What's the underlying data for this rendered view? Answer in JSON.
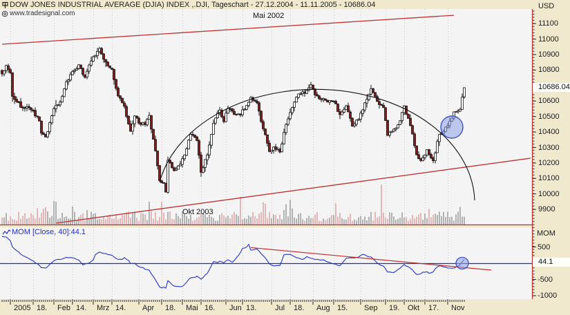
{
  "window": {
    "title": "DOW JONES INDUSTRIAL AVERAGE (DJIA) INDEX ,.DJI, Tageschart - 27.12.2004 - 11.11.2005 - 10686.04",
    "watermark": "www.tradesignal.com"
  },
  "annotations": {
    "upper_trendline_label": "Mai 2002",
    "lower_trendline_label": "Okt 2003"
  },
  "price_axis": {
    "unit": "USD",
    "current_value": "10686.04",
    "ticks": [
      11100,
      11000,
      10900,
      10800,
      10600,
      10500,
      10400,
      10300,
      10200,
      10100,
      10000,
      9900
    ]
  },
  "indicator": {
    "label": "MOM [Close, 40]:44.1",
    "axis_label": "MOM",
    "current_value": "44.1",
    "ticks": [
      500,
      -500,
      -1000
    ]
  },
  "date_axis": {
    "ticks": [
      {
        "label": "2005",
        "i": 4
      },
      {
        "label": "18.",
        "i": 15
      },
      {
        "label": "Feb",
        "i": 25
      },
      {
        "label": "14.",
        "i": 34
      },
      {
        "label": "Mrz",
        "i": 44
      },
      {
        "label": "14.",
        "i": 53
      },
      {
        "label": "Apr",
        "i": 66
      },
      {
        "label": "18.",
        "i": 77
      },
      {
        "label": "Mai",
        "i": 87
      },
      {
        "label": "16.",
        "i": 96
      },
      {
        "label": "Jun",
        "i": 108
      },
      {
        "label": "13.",
        "i": 116
      },
      {
        "label": "Jul",
        "i": 130
      },
      {
        "label": "18.",
        "i": 139
      },
      {
        "label": "Aug",
        "i": 150
      },
      {
        "label": "15.",
        "i": 160
      },
      {
        "label": "Sep",
        "i": 173
      },
      {
        "label": "19.",
        "i": 185
      },
      {
        "label": "Okt",
        "i": 194
      },
      {
        "label": "17.",
        "i": 204
      },
      {
        "label": "Nov",
        "i": 215
      }
    ]
  },
  "colors": {
    "frame_bg": "#f0e9ce",
    "plot_bg": "#f4f4f4",
    "grid": "#c9c9c9",
    "trend_red": "#c03030",
    "axis_red": "#c03030",
    "candle_down": "#821d1d",
    "candle_up": "#ffffff",
    "candle_stroke": "#111111",
    "mom_blue": "#2433c8",
    "zero_blue": "#1f2ec0",
    "volume_gray": "#b2b2b2",
    "volume_pink": "#e3b7b7",
    "circle_fill": "#8fa0e8",
    "circle_stroke": "#3c50c8"
  },
  "chart_data": {
    "type": "candlestick",
    "symbol": ".DJI",
    "timeframe": "Tageschart",
    "range_start": "27.12.2004",
    "range_end": "11.11.2005",
    "last_price": 10686.04,
    "n_candles": 224,
    "price_axis_range": [
      9850,
      11180
    ],
    "close_anchors": [
      [
        0,
        10776
      ],
      [
        2,
        10829
      ],
      [
        4,
        10783
      ],
      [
        5,
        10630
      ],
      [
        7,
        10597
      ],
      [
        10,
        10556
      ],
      [
        13,
        10558
      ],
      [
        15,
        10539
      ],
      [
        18,
        10471
      ],
      [
        19,
        10392
      ],
      [
        21,
        10368
      ],
      [
        23,
        10461
      ],
      [
        25,
        10551
      ],
      [
        28,
        10593
      ],
      [
        31,
        10724
      ],
      [
        34,
        10791
      ],
      [
        37,
        10834
      ],
      [
        40,
        10754
      ],
      [
        42,
        10833
      ],
      [
        47,
        10940
      ],
      [
        50,
        10851
      ],
      [
        53,
        10805
      ],
      [
        56,
        10633
      ],
      [
        59,
        10566
      ],
      [
        62,
        10405
      ],
      [
        64,
        10504
      ],
      [
        66,
        10458
      ],
      [
        69,
        10448
      ],
      [
        71,
        10507
      ],
      [
        74,
        10279
      ],
      [
        76,
        10087
      ],
      [
        78,
        10071
      ],
      [
        79,
        10012
      ],
      [
        80,
        10218
      ],
      [
        83,
        10151
      ],
      [
        86,
        10192
      ],
      [
        88,
        10252
      ],
      [
        91,
        10384
      ],
      [
        94,
        10345
      ],
      [
        96,
        10140
      ],
      [
        99,
        10252
      ],
      [
        102,
        10457
      ],
      [
        105,
        10542
      ],
      [
        107,
        10467
      ],
      [
        109,
        10553
      ],
      [
        112,
        10513
      ],
      [
        115,
        10512
      ],
      [
        120,
        10623
      ],
      [
        123,
        10589
      ],
      [
        126,
        10421
      ],
      [
        129,
        10274
      ],
      [
        131,
        10303
      ],
      [
        134,
        10271
      ],
      [
        137,
        10449
      ],
      [
        140,
        10558
      ],
      [
        143,
        10646
      ],
      [
        146,
        10651
      ],
      [
        149,
        10705
      ],
      [
        151,
        10640
      ],
      [
        154,
        10610
      ],
      [
        157,
        10594
      ],
      [
        160,
        10600
      ],
      [
        163,
        10513
      ],
      [
        166,
        10569
      ],
      [
        169,
        10438
      ],
      [
        172,
        10481
      ],
      [
        175,
        10589
      ],
      [
        178,
        10679
      ],
      [
        181,
        10597
      ],
      [
        184,
        10558
      ],
      [
        186,
        10378
      ],
      [
        189,
        10419
      ],
      [
        192,
        10473
      ],
      [
        194,
        10569
      ],
      [
        197,
        10441
      ],
      [
        200,
        10253
      ],
      [
        202,
        10216
      ],
      [
        205,
        10287
      ],
      [
        208,
        10215
      ],
      [
        211,
        10385
      ],
      [
        213,
        10402
      ],
      [
        215,
        10440
      ],
      [
        218,
        10530
      ],
      [
        221,
        10546
      ],
      [
        223,
        10686
      ]
    ],
    "pre_close_anchors": [
      [
        -40,
        9950
      ],
      [
        -36,
        10090
      ],
      [
        -32,
        10250
      ],
      [
        -27,
        10420
      ],
      [
        -22,
        10540
      ],
      [
        -17,
        10500
      ],
      [
        -13,
        10456
      ],
      [
        -9,
        10543
      ],
      [
        -5,
        10649
      ],
      [
        -1,
        10827
      ]
    ],
    "momentum": {
      "name": "MOM",
      "source": "Close",
      "period": 40,
      "current": 44.1,
      "zero_line": 0,
      "axis_range": [
        -1100,
        1100
      ]
    },
    "overlays": {
      "upper_trendline": {
        "origin": "Mai 2002",
        "from": {
          "i": 0,
          "price": 10967
        },
        "to": {
          "i": 218,
          "price": 11154
        }
      },
      "lower_trendline": {
        "origin": "Okt 2003",
        "from": {
          "i": 26,
          "price": 9812
        },
        "to": {
          "i": 255,
          "price": 10231
        }
      },
      "dome_arc": {
        "left": {
          "i": 76,
          "price": 10075
        },
        "apex_price": 10753,
        "right": {
          "i": 228,
          "price": 9959
        }
      },
      "breakout_circle": {
        "i": 217,
        "price": 10432
      },
      "mom_trendline": {
        "from": {
          "i": 120,
          "value": 480
        },
        "to": {
          "i": 236,
          "value": -213
        }
      },
      "mom_circle": {
        "i": 222,
        "value": 0
      }
    }
  }
}
